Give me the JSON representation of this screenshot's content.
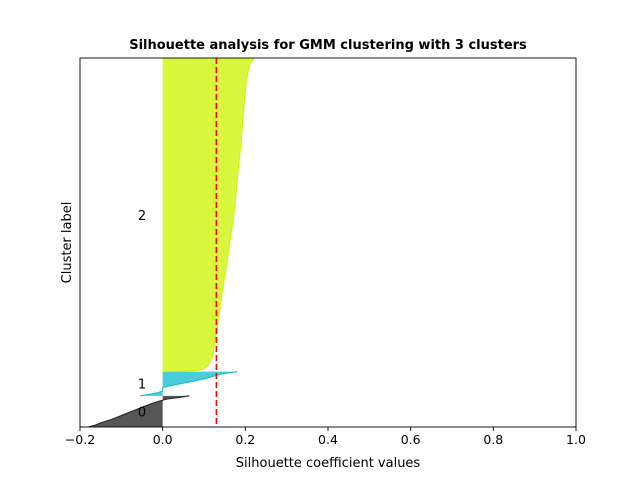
{
  "chart_data": {
    "type": "area",
    "title": "Silhouette analysis for GMM clustering with 3 clusters",
    "xlabel": "Silhouette coefficient values",
    "ylabel": "Cluster label",
    "xlim": [
      -0.2,
      1.0
    ],
    "ylim": [
      0,
      900
    ],
    "xticks": [
      -0.2,
      0.0,
      0.2,
      0.4,
      0.6,
      0.8,
      1.0
    ],
    "xtick_labels": [
      "−0.2",
      "0.0",
      "0.2",
      "0.4",
      "0.6",
      "0.8",
      "1.0"
    ],
    "grid": false,
    "average_silhouette": 0.13,
    "average_line_color": "#ff0000",
    "clusters": [
      {
        "label": "0",
        "color": "#262626",
        "y_lower": 0,
        "y_upper": 76,
        "profile": [
          [
            0,
            -0.18
          ],
          [
            4,
            -0.165
          ],
          [
            10,
            -0.15
          ],
          [
            18,
            -0.125
          ],
          [
            26,
            -0.105
          ],
          [
            34,
            -0.085
          ],
          [
            42,
            -0.065
          ],
          [
            50,
            -0.045
          ],
          [
            58,
            -0.025
          ],
          [
            64,
            -0.005
          ],
          [
            68,
            0.01
          ],
          [
            72,
            0.04
          ],
          [
            76,
            0.065
          ]
        ]
      },
      {
        "label": "1",
        "color": "#17becf",
        "y_lower": 76,
        "y_upper": 135,
        "profile": [
          [
            76,
            -0.055
          ],
          [
            80,
            -0.03
          ],
          [
            84,
            -0.01
          ],
          [
            88,
            0.0
          ],
          [
            96,
            0.0
          ],
          [
            102,
            0.025
          ],
          [
            108,
            0.055
          ],
          [
            114,
            0.085
          ],
          [
            120,
            0.11
          ],
          [
            126,
            0.13
          ],
          [
            131,
            0.15
          ],
          [
            135,
            0.18
          ]
        ]
      },
      {
        "label": "2",
        "color": "#cef506",
        "y_lower": 135,
        "y_upper": 900,
        "profile": [
          [
            135,
            0.0
          ],
          [
            138,
            0.085
          ],
          [
            142,
            0.1
          ],
          [
            150,
            0.11
          ],
          [
            170,
            0.12
          ],
          [
            200,
            0.125
          ],
          [
            250,
            0.133
          ],
          [
            300,
            0.14
          ],
          [
            350,
            0.147
          ],
          [
            400,
            0.155
          ],
          [
            450,
            0.162
          ],
          [
            500,
            0.17
          ],
          [
            550,
            0.176
          ],
          [
            600,
            0.18
          ],
          [
            650,
            0.185
          ],
          [
            700,
            0.19
          ],
          [
            750,
            0.194
          ],
          [
            800,
            0.198
          ],
          [
            840,
            0.202
          ],
          [
            870,
            0.207
          ],
          [
            890,
            0.213
          ],
          [
            900,
            0.222
          ]
        ]
      }
    ]
  }
}
